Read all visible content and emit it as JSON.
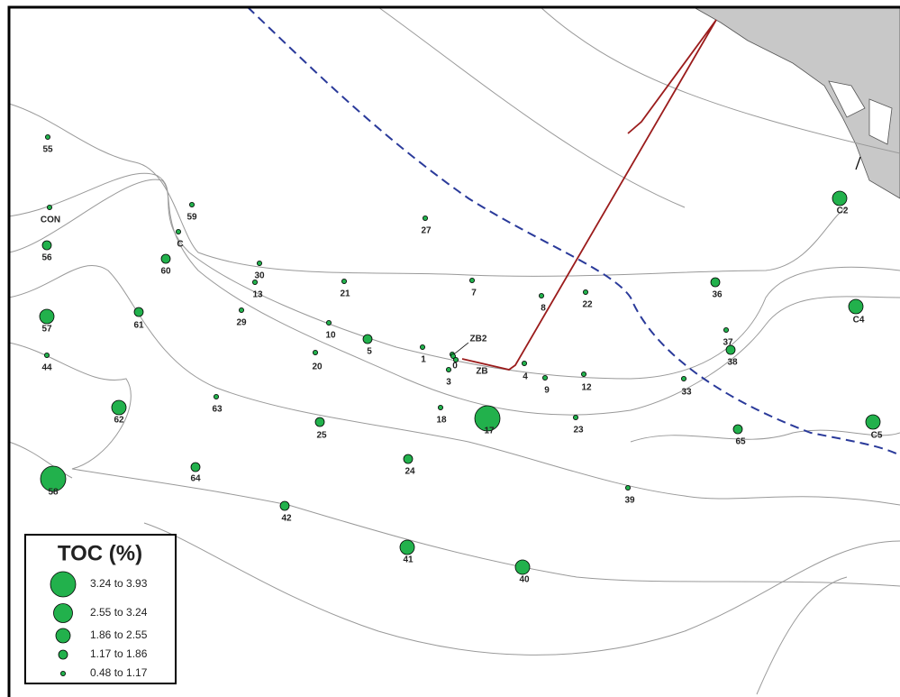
{
  "legend": {
    "title": "TOC (%)",
    "items": [
      "3.24 to 3.93",
      "2.55 to 3.24",
      "1.86 to 2.55",
      "1.17 to 1.86",
      "0.48 to 1.17"
    ]
  },
  "stations": [
    {
      "label": "55",
      "toc": "0.48 to 1.17"
    },
    {
      "label": "CON",
      "toc": "0.48 to 1.17"
    },
    {
      "label": "59",
      "toc": "0.48 to 1.17"
    },
    {
      "label": "C",
      "toc": "0.48 to 1.17"
    },
    {
      "label": "56",
      "toc": "1.17 to 1.86"
    },
    {
      "label": "60",
      "toc": "1.17 to 1.86"
    },
    {
      "label": "27",
      "toc": "0.48 to 1.17"
    },
    {
      "label": "30",
      "toc": "0.48 to 1.17"
    },
    {
      "label": "13",
      "toc": "0.48 to 1.17"
    },
    {
      "label": "21",
      "toc": "0.48 to 1.17"
    },
    {
      "label": "7",
      "toc": "0.48 to 1.17"
    },
    {
      "label": "8",
      "toc": "0.48 to 1.17"
    },
    {
      "label": "22",
      "toc": "0.48 to 1.17"
    },
    {
      "label": "36",
      "toc": "1.17 to 1.86"
    },
    {
      "label": "C2",
      "toc": "1.86 to 2.55"
    },
    {
      "label": "C4",
      "toc": "1.86 to 2.55"
    },
    {
      "label": "57",
      "toc": "1.86 to 2.55"
    },
    {
      "label": "61",
      "toc": "1.17 to 1.86"
    },
    {
      "label": "29",
      "toc": "0.48 to 1.17"
    },
    {
      "label": "10",
      "toc": "0.48 to 1.17"
    },
    {
      "label": "5",
      "toc": "1.17 to 1.86"
    },
    {
      "label": "1",
      "toc": "0.48 to 1.17"
    },
    {
      "label": "ZB2",
      "toc": "0.48 to 1.17"
    },
    {
      "label": "0",
      "toc": "0.48 to 1.17"
    },
    {
      "label": "ZB",
      "toc": "0.48 to 1.17"
    },
    {
      "label": "44",
      "toc": "0.48 to 1.17"
    },
    {
      "label": "20",
      "toc": "0.48 to 1.17"
    },
    {
      "label": "3",
      "toc": "0.48 to 1.17"
    },
    {
      "label": "4",
      "toc": "0.48 to 1.17"
    },
    {
      "label": "9",
      "toc": "0.48 to 1.17"
    },
    {
      "label": "12",
      "toc": "0.48 to 1.17"
    },
    {
      "label": "37",
      "toc": "0.48 to 1.17"
    },
    {
      "label": "38",
      "toc": "1.17 to 1.86"
    },
    {
      "label": "33",
      "toc": "0.48 to 1.17"
    },
    {
      "label": "63",
      "toc": "0.48 to 1.17"
    },
    {
      "label": "62",
      "toc": "1.86 to 2.55"
    },
    {
      "label": "18",
      "toc": "0.48 to 1.17"
    },
    {
      "label": "17",
      "toc": "3.24 to 3.93"
    },
    {
      "label": "25",
      "toc": "1.17 to 1.86"
    },
    {
      "label": "23",
      "toc": "0.48 to 1.17"
    },
    {
      "label": "65",
      "toc": "1.17 to 1.86"
    },
    {
      "label": "C5",
      "toc": "1.86 to 2.55"
    },
    {
      "label": "58",
      "toc": "3.24 to 3.93"
    },
    {
      "label": "64",
      "toc": "1.17 to 1.86"
    },
    {
      "label": "24",
      "toc": "1.17 to 1.86"
    },
    {
      "label": "39",
      "toc": "0.48 to 1.17"
    },
    {
      "label": "42",
      "toc": "1.17 to 1.86"
    },
    {
      "label": "41",
      "toc": "1.86 to 2.55"
    },
    {
      "label": "40",
      "toc": "1.86 to 2.55"
    }
  ]
}
